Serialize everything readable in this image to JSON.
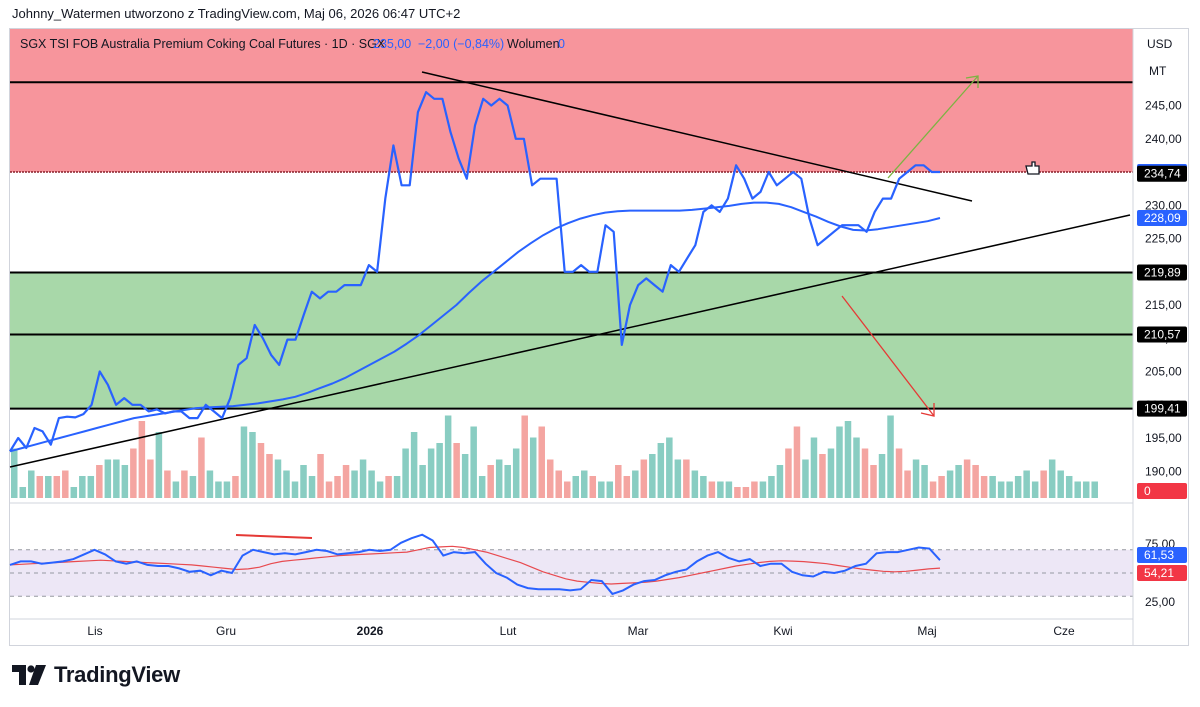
{
  "header": {
    "attribution": "Johnny_Watermen utworzono z TradingView.com, Maj 06, 2026 06:47 UTC+2"
  },
  "legend": {
    "symbol": "SGX TSI FOB Australia Premium Coking Coal Futures · 1D · SGX",
    "price": "235,00",
    "change": "−2,00 (−0,84%)",
    "volume_label": "Wolumen",
    "volume_value": "0"
  },
  "axis": {
    "currency": "USD",
    "unit": "MT"
  },
  "footer": {
    "brand": "TradingView"
  },
  "colors": {
    "price": "#2962ff",
    "red_zone": "#f7959c",
    "green_zone": "#a8d8a9",
    "vol_up": "#89cdc2",
    "vol_down": "#f4a5a1",
    "rsi": "#2962ff",
    "rsi_ma": "#e84a4f",
    "rsi_band": "#ede7f6",
    "up_arrow": "#7cb342",
    "down_arrow": "#e53935"
  },
  "chart_data": [
    {
      "type": "line",
      "x_ticks": [
        "Lis",
        "Gru",
        "2026",
        "Lut",
        "Mar",
        "Kwi",
        "Maj",
        "Cze"
      ],
      "ylim": [
        187,
        253
      ],
      "y_ticks": [
        "245,00",
        "240,00",
        "235,00",
        "230,00",
        "225,00",
        "220,00",
        "215,00",
        "210,00",
        "205,00",
        "200,00",
        "195,00",
        "190,00"
      ],
      "series": [
        {
          "values": [
            193,
            195,
            193.5,
            196.5,
            196,
            194,
            198,
            198.2,
            198.1,
            198.6,
            200,
            205,
            203,
            200,
            201,
            200,
            200,
            199,
            199.3,
            198.7,
            199,
            199,
            198,
            198,
            200,
            199,
            198,
            201,
            206,
            207,
            212,
            210,
            207.5,
            206,
            209.8,
            209.8,
            213.5,
            217,
            216,
            217,
            217,
            218,
            218,
            218,
            221,
            220,
            231,
            239,
            233,
            233,
            244,
            247,
            246,
            246,
            241,
            237,
            234,
            242,
            246,
            245,
            246,
            245,
            240,
            240,
            233,
            234,
            234,
            234,
            220,
            220,
            221,
            220,
            220,
            227,
            226,
            209,
            215,
            218,
            219,
            218,
            217,
            221,
            220,
            222,
            224,
            229,
            230,
            229,
            231,
            236,
            234,
            231,
            232,
            235,
            233,
            234,
            235,
            234,
            228,
            224,
            225,
            226,
            227,
            227,
            227,
            226,
            229,
            231,
            231,
            234,
            235,
            236,
            236,
            235,
            235
          ]
        },
        {
          "values": [
            193,
            193.5,
            194,
            194.5,
            195,
            195.5,
            196,
            196.5,
            197,
            197.5,
            198,
            198.3,
            198.6,
            198.9,
            199.2,
            199.5,
            199.6,
            199.7,
            199.8,
            200,
            200.2,
            200.5,
            200.8,
            201.2,
            201.8,
            202.5,
            203.2,
            204,
            205,
            206,
            207,
            208,
            209.2,
            210.5,
            212,
            213.5,
            215,
            216.8,
            218.5,
            220,
            221.5,
            223,
            224.3,
            225.5,
            226.5,
            227.3,
            228,
            228.5,
            228.9,
            229.1,
            229.2,
            229.2,
            229.2,
            229.2,
            229.2,
            229.3,
            229.5,
            229.7,
            229.9,
            230.2,
            230.4,
            230.4,
            230.2,
            229.7,
            229,
            228.3,
            227.5,
            226.8,
            226.3,
            226.2,
            226.4,
            226.7,
            227,
            227.3,
            227.6,
            228.09
          ]
        }
      ],
      "annotations": {
        "price_labels": [
          "235,00",
          "234,74",
          "228,09",
          "219,89",
          "210,57",
          "199,41"
        ]
      }
    },
    {
      "type": "bar",
      "title": "Wolumen",
      "values": [
        9,
        2,
        5,
        4,
        4,
        4,
        5,
        2,
        4,
        4,
        6,
        7,
        7,
        6,
        9,
        14,
        7,
        12,
        5,
        3,
        5,
        4,
        11,
        5,
        3,
        3,
        4,
        13,
        12,
        10,
        8,
        7,
        5,
        3,
        6,
        4,
        8,
        3,
        4,
        6,
        5,
        7,
        5,
        3,
        4,
        4,
        9,
        12,
        6,
        9,
        10,
        15,
        10,
        8,
        13,
        4,
        6,
        7,
        6,
        9,
        15,
        11,
        13,
        7,
        5,
        3,
        4,
        5,
        4,
        3,
        3,
        6,
        4,
        5,
        7,
        8,
        10,
        11,
        7,
        7,
        5,
        4,
        3,
        3,
        3,
        2,
        2,
        3,
        3,
        4,
        6,
        9,
        13,
        7,
        11,
        8,
        9,
        13,
        14,
        11,
        9,
        6,
        8,
        15,
        9,
        5,
        7,
        6,
        3,
        4,
        5,
        6,
        7,
        6,
        4,
        4,
        3,
        3,
        4,
        5,
        3,
        5,
        7,
        5,
        4,
        3,
        3,
        3,
        0,
        0,
        0,
        0
      ],
      "annotations": {
        "latest": "0"
      }
    },
    {
      "type": "line",
      "ylim": [
        15,
        88
      ],
      "y_ticks": [
        "75,00",
        "25,00"
      ],
      "series": [
        {
          "values": [
            57,
            60,
            60,
            58,
            59,
            60,
            62,
            66,
            70,
            66,
            60,
            58,
            60,
            57,
            56,
            56,
            54,
            51,
            52,
            48,
            52,
            50,
            65,
            70,
            68,
            66,
            67,
            66,
            68,
            70,
            69,
            66,
            67,
            68,
            70,
            69,
            70,
            76,
            80,
            83,
            78,
            65,
            68,
            67,
            68,
            58,
            50,
            46,
            40,
            37,
            36,
            36,
            36,
            35,
            36,
            44,
            43,
            32,
            35,
            40,
            43,
            44,
            48,
            51,
            53,
            60,
            65,
            68,
            63,
            60,
            62,
            56,
            58,
            58,
            51,
            48,
            47,
            51,
            50,
            52,
            56,
            58,
            67,
            68,
            68,
            70,
            72,
            71,
            61
          ]
        },
        {
          "values": [
            57,
            57.5,
            58,
            58.5,
            59,
            59.5,
            60,
            60.5,
            61,
            60.5,
            60,
            59.5,
            59,
            58.5,
            58,
            57.5,
            57,
            56,
            55,
            54,
            53,
            53.5,
            55,
            58,
            60,
            61,
            62,
            63,
            64,
            65,
            65.5,
            66,
            66.5,
            67,
            67.5,
            68,
            70,
            72,
            72.5,
            73,
            72,
            70,
            68,
            65,
            62,
            59,
            55,
            51,
            48,
            45,
            43,
            42,
            41,
            40.5,
            41,
            41.5,
            42,
            43,
            44.5,
            46,
            48,
            50,
            52,
            54,
            56,
            57.5,
            59,
            60,
            60.5,
            60.3,
            59.8,
            59,
            58,
            56.5,
            55,
            53.5,
            52.5,
            51.5,
            51,
            51.5,
            52.5,
            53.5,
            54.21
          ]
        }
      ],
      "annotations": {
        "latest_rsi": "61,53",
        "latest_ma": "54,21"
      }
    }
  ]
}
